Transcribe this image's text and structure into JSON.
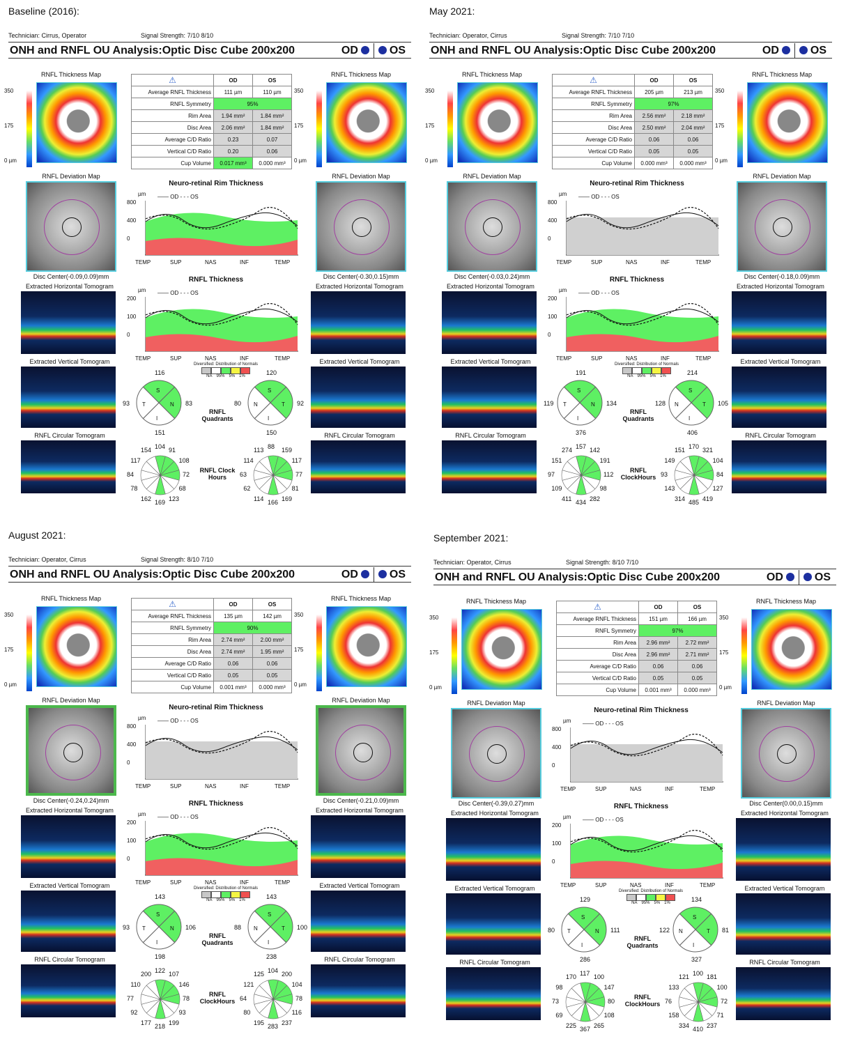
{
  "common": {
    "title": "ONH and RNFL OU Analysis:Optic Disc Cube 200x200",
    "od": "OD",
    "os": "OS",
    "tech_label": "Technician:",
    "signal_label": "Signal Strength:",
    "thickness_map_caption": "RNFL Thickness Map",
    "deviation_map_caption": "RNFL Deviation Map",
    "horizontal_caption": "Extracted Horizontal Tomogram",
    "vertical_caption": "Extracted Vertical Tomogram",
    "circular_caption": "RNFL Circular Tomogram",
    "scale": [
      "350",
      "175",
      "0 µm"
    ],
    "row_labels": [
      "Average RNFL Thickness",
      "RNFL Symmetry",
      "Rim Area",
      "Disc Area",
      "Average C/D Ratio",
      "Vertical C/D Ratio",
      "Cup Volume"
    ],
    "rim_title": "Neuro-retinal Rim Thickness",
    "rnfl_title": "RNFL Thickness",
    "legend_od": "OD",
    "legend_os": "OS",
    "unit": "µm",
    "xlabels": [
      "TEMP",
      "SUP",
      "NAS",
      "INF",
      "TEMP"
    ],
    "dist_title": "Diversified: Distribution of Normals",
    "dist_labels": [
      "NA",
      "95%",
      "5%",
      "1%"
    ],
    "quadrants_label": "RNFL Quadrants",
    "quad_letters": [
      "S",
      "N",
      "I",
      "T"
    ],
    "dist_colors": [
      "#c8c8c8",
      "#ffffff",
      "#5ef063",
      "#f5f542",
      "#f05050"
    ]
  },
  "panels": [
    {
      "label": "Baseline (2016):",
      "tech": "Cirrus, Operator",
      "sig_od": "7/10",
      "sig_os": "8/10",
      "clock_label": "RNFL Clock Hours",
      "table": [
        [
          "111 µm",
          "110 µm"
        ],
        [
          "95%"
        ],
        [
          "1.94 mm²",
          "1.84 mm²"
        ],
        [
          "2.06 mm²",
          "1.84 mm²"
        ],
        [
          "0.23",
          "0.07"
        ],
        [
          "0.20",
          "0.06"
        ],
        [
          "0.017 mm³",
          "0.000 mm³"
        ]
      ],
      "disc_od": "Disc Center(-0.09,0.09)mm",
      "disc_os": "Disc Center(-0.30,0.15)mm",
      "rim_ticks": [
        "800",
        "400",
        "0"
      ],
      "rnfl_ticks": [
        "200",
        "100",
        "0"
      ],
      "quad_od": [
        "116",
        "83",
        "151",
        "93"
      ],
      "quad_os": [
        "120",
        "80",
        "150",
        "92"
      ],
      "clock_od": [
        "104",
        "91",
        "108",
        "72",
        "68",
        "123",
        "169",
        "162",
        "78",
        "84",
        "117",
        "154"
      ],
      "clock_os": [
        "88",
        "159",
        "117",
        "77",
        "81",
        "169",
        "166",
        "114",
        "62",
        "63",
        "114",
        "113"
      ]
    },
    {
      "label": "May 2021:",
      "tech": "Operator, Cirrus",
      "sig_od": "7/10",
      "sig_os": "7/10",
      "clock_label": "RNFL ClockHours",
      "table": [
        [
          "205 µm",
          "213 µm"
        ],
        [
          "97%"
        ],
        [
          "2.56 mm²",
          "2.18 mm²"
        ],
        [
          "2.50 mm²",
          "2.04 mm²"
        ],
        [
          "0.06",
          "0.06"
        ],
        [
          "0.05",
          "0.05"
        ],
        [
          "0.000 mm³",
          "0.000 mm³"
        ]
      ],
      "disc_od": "Disc Center(-0.03,0.24)mm",
      "disc_os": "Disc Center(-0.18,0.09)mm",
      "rim_ticks": [
        "800",
        "400",
        "0"
      ],
      "rnfl_ticks": [
        "200",
        "100",
        "0"
      ],
      "quad_od": [
        "191",
        "134",
        "376",
        "119"
      ],
      "quad_os": [
        "214",
        "128",
        "406",
        "105"
      ],
      "clock_od": [
        "157",
        "142",
        "191",
        "112",
        "98",
        "282",
        "434",
        "411",
        "109",
        "97",
        "151",
        "274"
      ],
      "clock_os": [
        "170",
        "321",
        "104",
        "84",
        "127",
        "419",
        "485",
        "314",
        "143",
        "93",
        "149",
        "151"
      ]
    },
    {
      "label": "August 2021:",
      "tech": "Operator, Cirrus",
      "sig_od": "8/10",
      "sig_os": "7/10",
      "clock_label": "RNFL ClockHours",
      "table": [
        [
          "135 µm",
          "142 µm"
        ],
        [
          "90%"
        ],
        [
          "2.74 mm²",
          "2.00 mm²"
        ],
        [
          "2.74 mm²",
          "1.95 mm²"
        ],
        [
          "0.06",
          "0.06"
        ],
        [
          "0.05",
          "0.05"
        ],
        [
          "0.001 mm³",
          "0.000 mm³"
        ]
      ],
      "disc_od": "Disc Center(-0.24,0.24)mm",
      "disc_os": "Disc Center(-0.21,0.09)mm",
      "rim_ticks": [
        "800",
        "400",
        "0"
      ],
      "rnfl_ticks": [
        "200",
        "100",
        "0"
      ],
      "quad_od": [
        "143",
        "106",
        "198",
        "93"
      ],
      "quad_os": [
        "143",
        "88",
        "238",
        "100"
      ],
      "clock_od": [
        "122",
        "107",
        "146",
        "78",
        "93",
        "199",
        "218",
        "177",
        "92",
        "77",
        "110",
        "200"
      ],
      "clock_os": [
        "104",
        "200",
        "104",
        "78",
        "116",
        "237",
        "283",
        "195",
        "80",
        "64",
        "121",
        "125"
      ]
    },
    {
      "label": "September 2021:",
      "tech": "Operator, Cirrus",
      "sig_od": "8/10",
      "sig_os": "7/10",
      "clock_label": "RNFL ClockHours",
      "table": [
        [
          "151 µm",
          "166 µm"
        ],
        [
          "97%"
        ],
        [
          "2.96 mm²",
          "2.72 mm²"
        ],
        [
          "2.96 mm²",
          "2.71 mm²"
        ],
        [
          "0.06",
          "0.06"
        ],
        [
          "0.05",
          "0.05"
        ],
        [
          "0.001 mm³",
          "0.000 mm³"
        ]
      ],
      "disc_od": "Disc Center(-0.39,0.27)mm",
      "disc_os": "Disc Center(0.00,0.15)mm",
      "rim_ticks": [
        "800",
        "400",
        "0"
      ],
      "rnfl_ticks": [
        "200",
        "100",
        "0"
      ],
      "quad_od": [
        "129",
        "111",
        "286",
        "80"
      ],
      "quad_os": [
        "134",
        "122",
        "327",
        "81"
      ],
      "clock_od": [
        "117",
        "100",
        "147",
        "80",
        "108",
        "265",
        "367",
        "225",
        "69",
        "73",
        "98",
        "170"
      ],
      "clock_os": [
        "100",
        "181",
        "100",
        "72",
        "71",
        "237",
        "410",
        "334",
        "158",
        "76",
        "133",
        "121"
      ]
    }
  ]
}
